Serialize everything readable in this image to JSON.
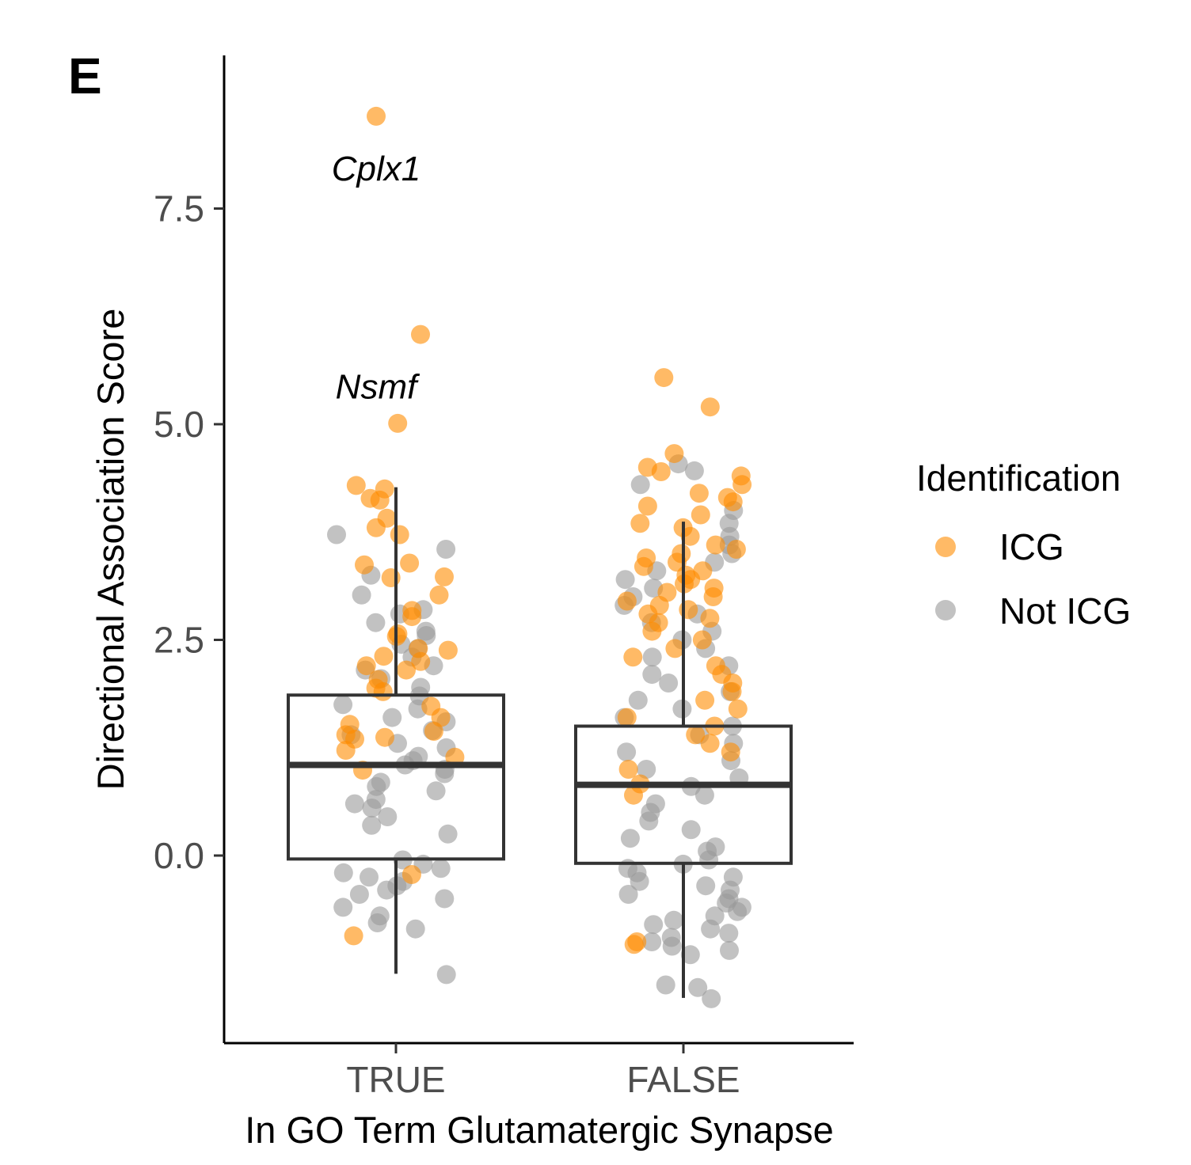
{
  "panel_label": "E",
  "legend": {
    "title": "Identification",
    "entries": [
      {
        "label": "ICG",
        "color": "#FF8C00"
      },
      {
        "label": "Not ICG",
        "color": "#999999"
      }
    ]
  },
  "chart_data": {
    "type": "box+jitter",
    "title": "",
    "xlabel": "In GO Term Glutamatergic Synapse",
    "ylabel": "Directional Association Score",
    "categories": [
      "TRUE",
      "FALSE"
    ],
    "ylim": [
      -2.0,
      8.8
    ],
    "yticks": [
      0.0,
      2.5,
      5.0,
      7.5
    ],
    "ytick_labels": [
      "0.0",
      "2.5",
      "5.0",
      "7.5"
    ],
    "colors": {
      "ICG": "#FF8C00",
      "Not ICG": "#999999"
    },
    "boxes": [
      {
        "category": "TRUE",
        "whisker_low": -1.37,
        "q1": -0.04,
        "median": 1.05,
        "q3": 1.86,
        "whisker_high": 4.27
      },
      {
        "category": "FALSE",
        "whisker_low": -1.65,
        "q1": -0.09,
        "median": 0.82,
        "q3": 1.5,
        "whisker_high": 3.87
      }
    ],
    "annotations": [
      {
        "text": "Cplx1",
        "category": "TRUE",
        "y": 8.57
      },
      {
        "text": "Nsmf",
        "category": "TRUE",
        "y": 6.04
      }
    ],
    "points": {
      "TRUE": {
        "ICG": [
          8.57,
          6.04,
          5.01,
          4.29,
          4.25,
          4.14,
          4.12,
          3.91,
          3.8,
          3.72,
          3.39,
          3.37,
          3.23,
          3.22,
          3.02,
          2.84,
          2.77,
          2.57,
          2.54,
          2.4,
          2.38,
          2.31,
          2.25,
          2.2,
          2.15,
          2.04,
          1.94,
          1.9,
          1.73,
          1.6,
          1.52,
          1.44,
          1.4,
          1.37,
          1.35,
          1.22,
          1.14,
          0.99,
          -0.22,
          -0.93
        ],
        "Not ICG": [
          3.72,
          3.55,
          3.25,
          3.02,
          2.85,
          2.8,
          2.7,
          2.6,
          2.55,
          2.45,
          2.4,
          2.3,
          2.2,
          2.15,
          2.05,
          1.95,
          1.85,
          1.75,
          1.7,
          1.6,
          1.55,
          1.45,
          1.4,
          1.3,
          1.25,
          1.15,
          1.1,
          1.05,
          1.0,
          0.95,
          0.85,
          0.8,
          0.75,
          0.65,
          0.6,
          0.55,
          0.45,
          0.35,
          0.25,
          -0.05,
          -0.1,
          -0.15,
          -0.2,
          -0.25,
          -0.3,
          -0.35,
          -0.4,
          -0.45,
          -0.5,
          -0.6,
          -0.7,
          -0.78,
          -0.85,
          -1.38
        ]
      },
      "FALSE": {
        "ICG": [
          5.54,
          5.2,
          4.66,
          4.5,
          4.45,
          4.4,
          4.3,
          4.2,
          4.15,
          4.1,
          4.05,
          3.95,
          3.85,
          3.8,
          3.7,
          3.6,
          3.55,
          3.5,
          3.45,
          3.4,
          3.35,
          3.3,
          3.25,
          3.2,
          3.15,
          3.1,
          3.05,
          3.0,
          2.95,
          2.9,
          2.85,
          2.8,
          2.75,
          2.7,
          2.6,
          2.5,
          2.4,
          2.3,
          2.2,
          2.1,
          2.0,
          1.9,
          1.8,
          1.7,
          1.6,
          1.5,
          1.4,
          1.3,
          1.2,
          1.0,
          0.83,
          0.7,
          -1.0,
          -1.03
        ],
        "Not ICG": [
          4.54,
          4.46,
          4.3,
          4.0,
          3.85,
          3.7,
          3.6,
          3.5,
          3.4,
          3.3,
          3.2,
          3.1,
          3.0,
          2.9,
          2.8,
          2.7,
          2.6,
          2.5,
          2.4,
          2.3,
          2.2,
          2.1,
          2.0,
          1.9,
          1.8,
          1.7,
          1.6,
          1.5,
          1.4,
          1.3,
          1.2,
          1.1,
          1.0,
          0.9,
          0.8,
          0.7,
          0.6,
          0.5,
          0.4,
          0.3,
          0.2,
          0.1,
          0.05,
          -0.05,
          -0.1,
          -0.15,
          -0.2,
          -0.25,
          -0.3,
          -0.35,
          -0.4,
          -0.45,
          -0.5,
          -0.55,
          -0.6,
          -0.65,
          -0.7,
          -0.75,
          -0.8,
          -0.85,
          -0.9,
          -0.95,
          -1.0,
          -1.05,
          -1.1,
          -1.15,
          -1.5,
          -1.53,
          -1.66
        ]
      }
    }
  }
}
